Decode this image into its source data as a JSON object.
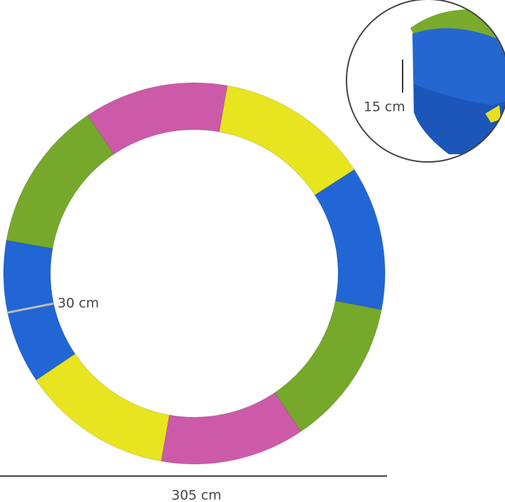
{
  "labels": {
    "width": "30 cm",
    "height": "15 cm",
    "diameter": "305 cm"
  }
}
